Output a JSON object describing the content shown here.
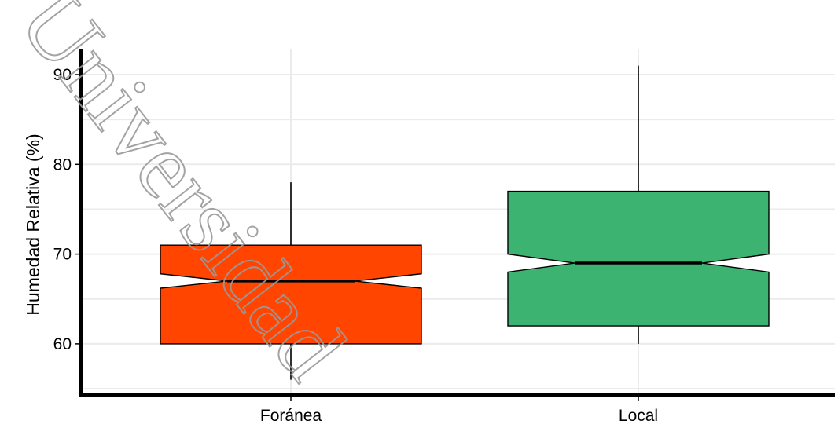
{
  "chart_data": {
    "type": "boxplot",
    "notched": true,
    "ylabel": "Humedad Relativa (%)",
    "xlabel": "",
    "ylim": [
      54.6,
      92.5
    ],
    "yticks": [
      60,
      70,
      80,
      90
    ],
    "grid": true,
    "categories": [
      "Foránea",
      "Local"
    ],
    "boxes": [
      {
        "category": "Foránea",
        "whisker_low": 56,
        "q1": 60,
        "notch_low": 66.2,
        "median": 67,
        "notch_high": 67.8,
        "q3": 71,
        "whisker_high": 78,
        "color": "#FF4500"
      },
      {
        "category": "Local",
        "whisker_low": 60,
        "q1": 62,
        "notch_low": 68,
        "median": 69,
        "notch_high": 70,
        "q3": 77,
        "whisker_high": 91,
        "color": "#3CB371"
      }
    ]
  },
  "watermark": {
    "text": "Universidad",
    "color": "#9a9a9a"
  }
}
